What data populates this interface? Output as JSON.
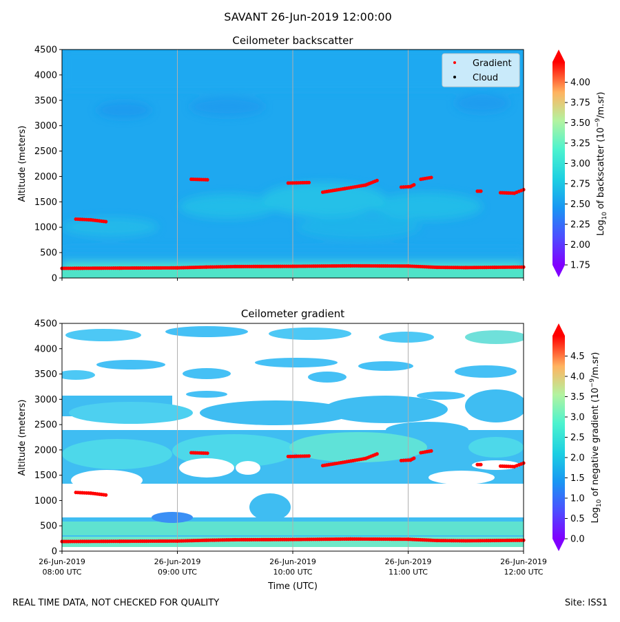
{
  "figure": {
    "title": "SAVANT 26-Jun-2019 12:00:00",
    "footer_left": "REAL TIME DATA, NOT CHECKED FOR QUALITY",
    "footer_right": "Site: ISS1"
  },
  "colors": {
    "gradient_marker": "#ff0000",
    "cloud_marker": "#000000",
    "background_field": "#1ea8f0",
    "grid": "#b0b0b0"
  },
  "chart_data": [
    {
      "type": "heatmap",
      "title": "Ceilometer backscatter",
      "ylabel": "Altitude (meters)",
      "xlim": [
        "08:00",
        "12:00"
      ],
      "ylim": [
        0,
        4500
      ],
      "yticks": [
        "0",
        "500",
        "1000",
        "1500",
        "2000",
        "2500",
        "3000",
        "3500",
        "4000",
        "4500"
      ],
      "xticks": [],
      "grid": "vertical lines at hours",
      "colorbar": {
        "label": "Log10 of backscatter (10^-9/m.sr)",
        "label_main": "Log",
        "label_sub": "10",
        "label_mid": " of backscatter (10",
        "label_sup": "−9",
        "label_end": "/m.sr)",
        "range": [
          1.75,
          4.25
        ],
        "ticks": [
          "1.75",
          "2.00",
          "2.25",
          "2.50",
          "2.75",
          "3.00",
          "3.25",
          "3.50",
          "3.75",
          "4.00"
        ],
        "colormap": "rainbow",
        "extend": "both"
      },
      "legend": {
        "placement": "top-right",
        "entries": [
          {
            "label": "Gradient",
            "color": "#ff0000"
          },
          {
            "label": "Cloud",
            "color": "#000000"
          }
        ]
      },
      "series": [
        {
          "name": "Gradient",
          "segments": [
            [
              [
                0.0,
                190
              ],
              [
                0.5,
                195
              ],
              [
                1.0,
                200
              ],
              [
                1.25,
                215
              ],
              [
                1.5,
                225
              ],
              [
                2.0,
                230
              ],
              [
                2.5,
                240
              ],
              [
                3.0,
                235
              ],
              [
                3.25,
                210
              ],
              [
                3.5,
                205
              ],
              [
                3.75,
                210
              ],
              [
                4.0,
                215
              ]
            ],
            [
              [
                0.12,
                1160
              ],
              [
                0.25,
                1145
              ],
              [
                0.38,
                1110
              ]
            ],
            [
              [
                1.12,
                1945
              ],
              [
                1.26,
                1935
              ]
            ],
            [
              [
                1.96,
                1870
              ],
              [
                2.14,
                1880
              ]
            ],
            [
              [
                2.26,
                1690
              ],
              [
                2.45,
                1760
              ],
              [
                2.63,
                1830
              ],
              [
                2.73,
                1920
              ]
            ],
            [
              [
                2.94,
                1790
              ],
              [
                3.02,
                1800
              ],
              [
                3.05,
                1835
              ]
            ],
            [
              [
                3.11,
                1945
              ],
              [
                3.2,
                1980
              ]
            ],
            [
              [
                3.6,
                1710
              ],
              [
                3.63,
                1710
              ]
            ],
            [
              [
                3.8,
                1680
              ],
              [
                3.92,
                1670
              ],
              [
                4.0,
                1740
              ]
            ]
          ]
        },
        {
          "name": "Cloud",
          "segments": []
        }
      ]
    },
    {
      "type": "heatmap",
      "title": "Ceilometer gradient",
      "xlabel": "Time (UTC)",
      "ylabel": "Altitude (meters)",
      "xlim": [
        "08:00",
        "12:00"
      ],
      "ylim": [
        0,
        4500
      ],
      "yticks": [
        "0",
        "500",
        "1000",
        "1500",
        "2000",
        "2500",
        "3000",
        "3500",
        "4000",
        "4500"
      ],
      "xticks": [
        {
          "date": "26-Jun-2019",
          "time": "08:00 UTC"
        },
        {
          "date": "26-Jun-2019",
          "time": "09:00 UTC"
        },
        {
          "date": "26-Jun-2019",
          "time": "10:00 UTC"
        },
        {
          "date": "26-Jun-2019",
          "time": "11:00 UTC"
        },
        {
          "date": "26-Jun-2019",
          "time": "12:00 UTC"
        }
      ],
      "grid": "vertical lines at hours",
      "colorbar": {
        "label": "Log10 of negative gradient (10^-9/m.sr)",
        "label_main": "Log",
        "label_sub": "10",
        "label_mid": " of negative gradient (10",
        "label_sup": "−9",
        "label_end": "/m.sr)",
        "range": [
          0.0,
          5.0
        ],
        "ticks": [
          "0.0",
          "0.5",
          "1.0",
          "1.5",
          "2.0",
          "2.5",
          "3.0",
          "3.5",
          "4.0",
          "4.5"
        ],
        "colormap": "rainbow",
        "extend": "both"
      },
      "series": [
        {
          "name": "Gradient",
          "segments": [
            [
              [
                0.0,
                190
              ],
              [
                0.5,
                195
              ],
              [
                1.0,
                200
              ],
              [
                1.25,
                215
              ],
              [
                1.5,
                225
              ],
              [
                2.0,
                230
              ],
              [
                2.5,
                240
              ],
              [
                3.0,
                235
              ],
              [
                3.25,
                210
              ],
              [
                3.5,
                205
              ],
              [
                3.75,
                210
              ],
              [
                4.0,
                215
              ]
            ],
            [
              [
                0.12,
                1160
              ],
              [
                0.25,
                1145
              ],
              [
                0.38,
                1110
              ]
            ],
            [
              [
                1.12,
                1945
              ],
              [
                1.26,
                1935
              ]
            ],
            [
              [
                1.96,
                1870
              ],
              [
                2.14,
                1880
              ]
            ],
            [
              [
                2.26,
                1690
              ],
              [
                2.45,
                1760
              ],
              [
                2.63,
                1830
              ],
              [
                2.73,
                1920
              ]
            ],
            [
              [
                2.94,
                1790
              ],
              [
                3.02,
                1800
              ],
              [
                3.05,
                1835
              ]
            ],
            [
              [
                3.11,
                1945
              ],
              [
                3.2,
                1980
              ]
            ],
            [
              [
                3.6,
                1710
              ],
              [
                3.63,
                1710
              ]
            ],
            [
              [
                3.8,
                1680
              ],
              [
                3.92,
                1670
              ],
              [
                4.0,
                1740
              ]
            ]
          ]
        }
      ]
    }
  ]
}
